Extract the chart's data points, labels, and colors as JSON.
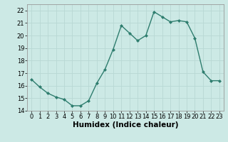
{
  "x": [
    0,
    1,
    2,
    3,
    4,
    5,
    6,
    7,
    8,
    9,
    10,
    11,
    12,
    13,
    14,
    15,
    16,
    17,
    18,
    19,
    20,
    21,
    22,
    23
  ],
  "y": [
    16.5,
    15.9,
    15.4,
    15.1,
    14.9,
    14.4,
    14.4,
    14.8,
    16.2,
    17.3,
    18.9,
    20.8,
    20.2,
    19.6,
    20.0,
    21.9,
    21.5,
    21.1,
    21.2,
    21.1,
    19.8,
    17.1,
    16.4,
    16.4
  ],
  "line_color": "#2e7d6e",
  "marker": "D",
  "marker_size": 2.0,
  "linewidth": 1.0,
  "xlabel": "Humidex (Indice chaleur)",
  "xlim": [
    -0.5,
    23.5
  ],
  "ylim": [
    14,
    22.5
  ],
  "yticks": [
    14,
    15,
    16,
    17,
    18,
    19,
    20,
    21,
    22
  ],
  "xticks": [
    0,
    1,
    2,
    3,
    4,
    5,
    6,
    7,
    8,
    9,
    10,
    11,
    12,
    13,
    14,
    15,
    16,
    17,
    18,
    19,
    20,
    21,
    22,
    23
  ],
  "bg_color": "#cce9e5",
  "grid_color": "#b8d8d4",
  "tick_fontsize": 6.0,
  "xlabel_fontsize": 7.5,
  "xlabel_fontweight": "bold"
}
